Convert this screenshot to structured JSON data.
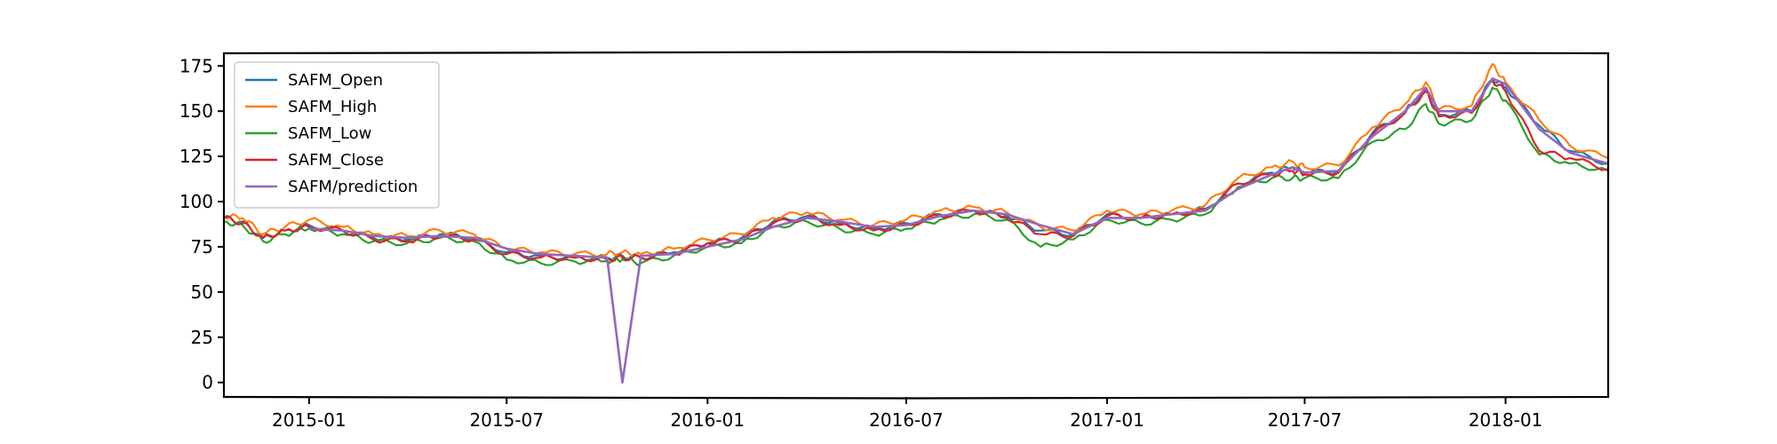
{
  "chart_data": {
    "type": "line",
    "title": "",
    "xlabel": "",
    "ylabel": "",
    "x_range": [
      "2014-10-15",
      "2018-04-05"
    ],
    "ylim": [
      -8,
      182
    ],
    "x_ticks": [
      {
        "date": "2015-01-01",
        "label": "2015-01"
      },
      {
        "date": "2015-07-01",
        "label": "2015-07"
      },
      {
        "date": "2016-01-01",
        "label": "2016-01"
      },
      {
        "date": "2016-07-01",
        "label": "2016-07"
      },
      {
        "date": "2017-01-01",
        "label": "2017-01"
      },
      {
        "date": "2017-07-01",
        "label": "2017-07"
      },
      {
        "date": "2018-01-01",
        "label": "2018-01"
      }
    ],
    "y_ticks": [
      0,
      25,
      50,
      75,
      100,
      125,
      150,
      175
    ],
    "grid": false,
    "legend_position": "upper-left",
    "x": [
      "2014-10-15",
      "2014-11-01",
      "2014-11-20",
      "2014-12-10",
      "2015-01-01",
      "2015-02-01",
      "2015-03-01",
      "2015-04-01",
      "2015-05-01",
      "2015-06-01",
      "2015-07-01",
      "2015-08-01",
      "2015-09-01",
      "2015-10-01",
      "2015-10-15",
      "2015-11-01",
      "2015-12-01",
      "2016-01-01",
      "2016-02-01",
      "2016-03-01",
      "2016-04-01",
      "2016-05-01",
      "2016-06-01",
      "2016-07-01",
      "2016-08-01",
      "2016-09-01",
      "2016-10-01",
      "2016-11-01",
      "2016-12-01",
      "2017-01-01",
      "2017-02-01",
      "2017-03-01",
      "2017-04-01",
      "2017-05-01",
      "2017-06-01",
      "2017-06-20",
      "2017-07-01",
      "2017-08-01",
      "2017-09-01",
      "2017-10-01",
      "2017-10-20",
      "2017-11-01",
      "2017-12-01",
      "2017-12-20",
      "2018-01-01",
      "2018-02-01",
      "2018-03-01",
      "2018-04-05"
    ],
    "series": [
      {
        "name": "SAFM_Open",
        "color": "#1f77b4",
        "values": [
          91,
          89,
          80,
          84,
          87,
          84,
          80,
          79,
          82,
          80,
          72,
          70,
          69,
          69,
          70,
          69,
          72,
          77,
          80,
          89,
          92,
          88,
          85,
          88,
          93,
          95,
          92,
          84,
          82,
          93,
          91,
          93,
          96,
          110,
          116,
          119,
          116,
          117,
          138,
          150,
          162,
          148,
          150,
          168,
          163,
          142,
          128,
          121
        ]
      },
      {
        "name": "SAFM_High",
        "color": "#ff7f0e",
        "values": [
          92,
          91,
          82,
          86,
          90,
          86,
          82,
          81,
          84,
          82,
          74,
          72,
          71,
          71,
          72,
          71,
          74,
          79,
          82,
          91,
          94,
          90,
          87,
          90,
          95,
          97,
          94,
          86,
          84,
          95,
          93,
          95,
          98,
          113,
          119,
          122,
          119,
          120,
          141,
          154,
          166,
          151,
          153,
          176,
          166,
          145,
          131,
          124
        ]
      },
      {
        "name": "SAFM_Low",
        "color": "#2ca02c",
        "values": [
          89,
          87,
          78,
          82,
          85,
          82,
          78,
          77,
          80,
          78,
          68,
          66,
          67,
          67,
          68,
          66,
          70,
          75,
          77,
          86,
          89,
          85,
          82,
          85,
          90,
          93,
          90,
          75,
          79,
          90,
          88,
          90,
          93,
          108,
          113,
          113,
          113,
          113,
          133,
          140,
          154,
          143,
          145,
          163,
          156,
          126,
          121,
          117
        ]
      },
      {
        "name": "SAFM_Close",
        "color": "#d62728",
        "values": [
          91,
          88,
          80,
          84,
          86,
          84,
          79,
          78,
          81,
          79,
          71,
          69,
          69,
          68,
          69,
          69,
          71,
          77,
          79,
          88,
          91,
          87,
          84,
          87,
          92,
          95,
          91,
          82,
          81,
          92,
          91,
          93,
          95,
          110,
          115,
          117,
          115,
          116,
          137,
          149,
          161,
          147,
          149,
          167,
          161,
          128,
          124,
          118
        ]
      },
      {
        "name": "SAFM/prediction",
        "color": "#9467bd",
        "values": [
          null,
          null,
          null,
          null,
          85,
          84,
          81,
          80,
          81,
          80,
          74,
          71,
          70,
          69,
          0,
          70,
          71,
          75,
          79,
          86,
          91,
          89,
          86,
          87,
          92,
          95,
          93,
          87,
          82,
          91,
          91,
          93,
          95,
          107,
          115,
          119,
          116,
          117,
          136,
          150,
          163,
          150,
          150,
          168,
          165,
          140,
          127,
          121
        ]
      }
    ]
  }
}
